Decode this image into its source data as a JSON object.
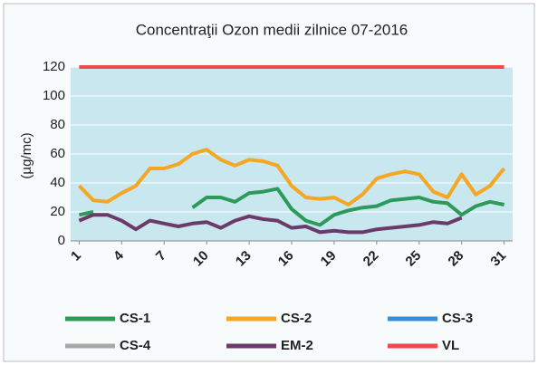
{
  "chart_data": {
    "type": "line",
    "title": "Concentraţii Ozon medii zilnice  07-2016",
    "y_label": "(µg/mc)",
    "x": [
      1,
      2,
      3,
      4,
      5,
      6,
      7,
      8,
      9,
      10,
      11,
      12,
      13,
      14,
      15,
      16,
      17,
      18,
      19,
      20,
      21,
      22,
      23,
      24,
      25,
      26,
      27,
      28,
      29,
      30,
      31
    ],
    "xlim": [
      0.4,
      31.6
    ],
    "xticks": [
      1,
      4,
      7,
      10,
      13,
      16,
      19,
      22,
      25,
      28,
      31
    ],
    "ylim": [
      0,
      120
    ],
    "yticks": [
      0,
      20,
      40,
      60,
      80,
      100,
      120
    ],
    "grid": true,
    "legend": "bottom",
    "series": [
      {
        "name": "CS-1",
        "color": "#2e9a5a",
        "values": [
          18,
          20,
          null,
          null,
          null,
          null,
          null,
          null,
          23,
          30,
          30,
          27,
          33,
          34,
          36,
          22,
          14,
          11,
          18,
          21,
          23,
          24,
          28,
          29,
          30,
          27,
          26,
          18,
          24,
          27,
          25
        ]
      },
      {
        "name": "CS-2",
        "color": "#f5a623",
        "values": [
          38,
          28,
          27,
          33,
          38,
          50,
          50,
          53,
          60,
          63,
          56,
          52,
          56,
          55,
          52,
          38,
          30,
          29,
          30,
          25,
          32,
          43,
          46,
          48,
          46,
          34,
          30,
          46,
          32,
          38,
          50
        ]
      },
      {
        "name": "CS-3",
        "color": "#3a8fd9",
        "values": [
          null,
          null,
          null,
          null,
          null,
          null,
          null,
          null,
          null,
          null,
          null,
          null,
          null,
          null,
          null,
          null,
          null,
          null,
          null,
          null,
          null,
          null,
          null,
          null,
          null,
          null,
          null,
          null,
          null,
          null,
          null
        ]
      },
      {
        "name": "CS-4",
        "color": "#a8a8a8",
        "values": [
          null,
          null,
          null,
          null,
          null,
          null,
          null,
          null,
          null,
          null,
          null,
          null,
          null,
          null,
          null,
          null,
          null,
          null,
          null,
          null,
          null,
          null,
          null,
          null,
          null,
          null,
          null,
          null,
          null,
          null,
          null
        ]
      },
      {
        "name": "EM-2",
        "color": "#6b3a6b",
        "values": [
          14,
          18,
          18,
          14,
          8,
          14,
          12,
          10,
          12,
          13,
          9,
          14,
          17,
          15,
          14,
          9,
          10,
          6,
          7,
          6,
          6,
          8,
          9,
          10,
          11,
          13,
          12,
          16,
          null,
          null,
          null
        ]
      },
      {
        "name": "VL",
        "color": "#f04a4a",
        "values": [
          120,
          120,
          120,
          120,
          120,
          120,
          120,
          120,
          120,
          120,
          120,
          120,
          120,
          120,
          120,
          120,
          120,
          120,
          120,
          120,
          120,
          120,
          120,
          120,
          120,
          120,
          120,
          120,
          120,
          120,
          120
        ]
      }
    ]
  }
}
